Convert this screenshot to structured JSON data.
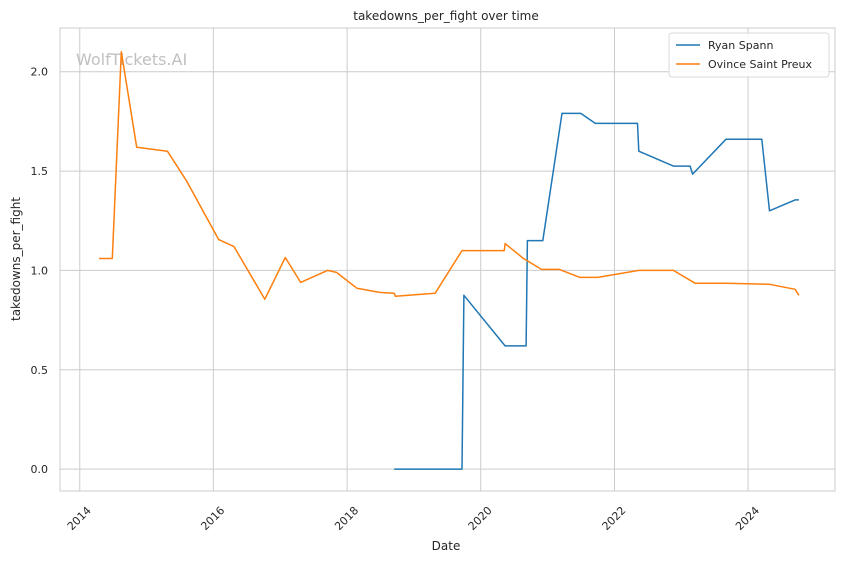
{
  "chart_data": {
    "type": "line",
    "title": "takedowns_per_fight over time",
    "xlabel": "Date",
    "ylabel": "takedowns_per_fight",
    "watermark": "WolfTickets.AI",
    "xlim": [
      "2013-09-15",
      "2025-04-20"
    ],
    "ylim": [
      -0.11,
      2.22
    ],
    "x_ticks": [
      "2014-01-01",
      "2016-01-01",
      "2018-01-01",
      "2020-01-01",
      "2022-01-01",
      "2024-01-01"
    ],
    "x_tick_labels": [
      "2014",
      "2016",
      "2018",
      "2020",
      "2022",
      "2024"
    ],
    "y_ticks": [
      0.0,
      0.5,
      1.0,
      1.5,
      2.0
    ],
    "y_tick_labels": [
      "0.0",
      "0.5",
      "1.0",
      "1.5",
      "2.0"
    ],
    "grid": true,
    "legend": "top-right",
    "series": [
      {
        "name": "Ryan Spann",
        "color": "#1f77b4",
        "points": [
          [
            "2018-09-15",
            0.0
          ],
          [
            "2019-09-21",
            0.0
          ],
          [
            "2019-10-01",
            0.875
          ],
          [
            "2020-05-13",
            0.62
          ],
          [
            "2020-09-05",
            0.62
          ],
          [
            "2020-09-12",
            1.15
          ],
          [
            "2020-12-05",
            1.15
          ],
          [
            "2021-03-20",
            1.79
          ],
          [
            "2021-07-01",
            1.79
          ],
          [
            "2021-09-18",
            1.74
          ],
          [
            "2022-05-07",
            1.74
          ],
          [
            "2022-05-14",
            1.6
          ],
          [
            "2022-11-19",
            1.525
          ],
          [
            "2023-02-18",
            1.525
          ],
          [
            "2023-03-04",
            1.485
          ],
          [
            "2023-09-02",
            1.66
          ],
          [
            "2024-03-16",
            1.66
          ],
          [
            "2024-04-27",
            1.3
          ],
          [
            "2024-09-14",
            1.355
          ],
          [
            "2024-10-05",
            1.355
          ]
        ]
      },
      {
        "name": "Ovince Saint Preux",
        "color": "#ff7f0e",
        "points": [
          [
            "2014-04-16",
            1.06
          ],
          [
            "2014-06-28",
            1.06
          ],
          [
            "2014-08-16",
            2.1
          ],
          [
            "2014-11-08",
            1.62
          ],
          [
            "2015-04-25",
            1.6
          ],
          [
            "2015-08-08",
            1.45
          ],
          [
            "2016-01-30",
            1.155
          ],
          [
            "2016-04-23",
            1.12
          ],
          [
            "2016-10-08",
            0.855
          ],
          [
            "2017-01-28",
            1.065
          ],
          [
            "2017-04-22",
            0.94
          ],
          [
            "2017-09-16",
            1.0
          ],
          [
            "2017-11-04",
            0.99
          ],
          [
            "2018-02-24",
            0.91
          ],
          [
            "2018-06-23",
            0.89
          ],
          [
            "2018-09-15",
            0.885
          ],
          [
            "2018-09-22",
            0.87
          ],
          [
            "2019-04-27",
            0.885
          ],
          [
            "2019-09-21",
            1.1
          ],
          [
            "2020-05-09",
            1.1
          ],
          [
            "2020-05-13",
            1.135
          ],
          [
            "2020-08-22",
            1.06
          ],
          [
            "2020-11-28",
            1.005
          ],
          [
            "2021-03-06",
            1.005
          ],
          [
            "2021-06-26",
            0.965
          ],
          [
            "2021-10-02",
            0.965
          ],
          [
            "2022-05-14",
            1.0
          ],
          [
            "2022-11-19",
            1.0
          ],
          [
            "2023-03-18",
            0.935
          ],
          [
            "2023-09-02",
            0.935
          ],
          [
            "2024-04-27",
            0.93
          ],
          [
            "2024-09-14",
            0.905
          ],
          [
            "2024-10-05",
            0.875
          ]
        ]
      }
    ]
  }
}
